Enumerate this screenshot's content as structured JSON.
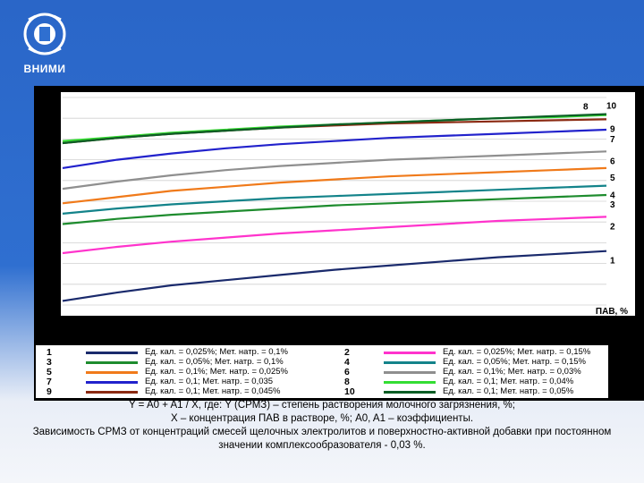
{
  "logo": {
    "text": "ВНИМИ",
    "icon": "vnimi-emblem-icon"
  },
  "colors": {
    "background": "#2f6fd0",
    "panel": "#000000"
  },
  "chart_data": {
    "type": "line",
    "title": "",
    "xlabel": "ПАВ, %",
    "ylabel": "",
    "x": [
      0,
      0.1,
      0.2,
      0.3,
      0.4,
      0.5,
      0.6,
      0.7,
      0.8,
      0.9,
      1.0
    ],
    "ylim": [
      0,
      100
    ],
    "grid": true,
    "series": [
      {
        "id": "1",
        "name": "Ед. кал. = 0,025%; Мет. натр. = 0,1%",
        "color": "#1a2a6c",
        "values": [
          2,
          6,
          9.5,
          12,
          14.5,
          17,
          19,
          21,
          23,
          24.5,
          26
        ]
      },
      {
        "id": "2",
        "name": "Ед. кал. = 0,025%; Мет. натр. = 0,15%",
        "color": "#ff33cc",
        "values": [
          25,
          28,
          30.5,
          32.5,
          34.5,
          36,
          37.5,
          39,
          40.5,
          41.5,
          42.5
        ]
      },
      {
        "id": "3",
        "name": "Ед. кал. = 0,05%; Мет. натр. = 0,1%",
        "color": "#1e8c2e",
        "values": [
          39,
          41.5,
          43.5,
          45,
          46.5,
          48,
          49,
          50,
          51,
          52,
          53
        ]
      },
      {
        "id": "4",
        "name": "Ед. кал. = 0,05%; Мет. натр. = 0,15%",
        "color": "#13838a",
        "values": [
          44,
          46.5,
          48.5,
          50,
          51.5,
          52.5,
          53.5,
          54.5,
          55.5,
          56.5,
          57.5
        ]
      },
      {
        "id": "5",
        "name": "Ед. кал. = 0,1%; Мет. натр. = 0,025%",
        "color": "#f07a1a",
        "values": [
          49,
          52,
          55,
          57,
          59,
          60.5,
          62,
          63,
          64,
          65,
          66
        ]
      },
      {
        "id": "6",
        "name": "Ед. кал. = 0,1%; Мет. натр. = 0,03%",
        "color": "#8f8f8f",
        "values": [
          56,
          59.5,
          62.5,
          65,
          67,
          68.5,
          70,
          71,
          72,
          73,
          74
        ]
      },
      {
        "id": "7",
        "name": "Ед. кал. = 0,1; Мет. натр. = 0,035",
        "color": "#2222cc",
        "values": [
          66,
          70,
          73,
          75.5,
          77.5,
          79,
          80.5,
          81.5,
          82.5,
          83.5,
          84.5
        ]
      },
      {
        "id": "8",
        "name": "Ед. кал. = 0,1; Мет. натр. = 0,04%",
        "color": "#33dd33",
        "values": [
          79,
          81,
          83,
          84.5,
          86,
          87,
          88,
          89,
          90,
          90.5,
          91.5
        ]
      },
      {
        "id": "9",
        "name": "Ед. кал. = 0,1; Мет. натр. = 0,045%",
        "color": "#8b2a12",
        "values": [
          78,
          80.5,
          82.5,
          84,
          85.5,
          86.5,
          87.5,
          88,
          88.5,
          89,
          89.5
        ]
      },
      {
        "id": "10",
        "name": "Ед. кал. = 0,1; Мет. натр. = 0,05%",
        "color": "#0b5e25",
        "values": [
          78,
          80.5,
          82.5,
          84,
          85.5,
          87,
          88,
          89,
          90,
          91,
          92
        ]
      }
    ],
    "right_labels": [
      "8",
      "10",
      "9",
      "7",
      "6",
      "5",
      "4",
      "3",
      "2",
      "1"
    ]
  },
  "caption": {
    "line1": "Y = A0 + A1 / X, где: Y (СРМЗ) – степень растворения молочного загрязнения, %;",
    "line2": "X – концентрация ПАВ в растворе, %; A0, A1 – коэффициенты.",
    "line3": "Зависимость СРМЗ от концентраций смесей щелочных электролитов и поверхностно-активной добавки при постоянном",
    "line4": "значении комплексообразователя - 0,03 %."
  }
}
